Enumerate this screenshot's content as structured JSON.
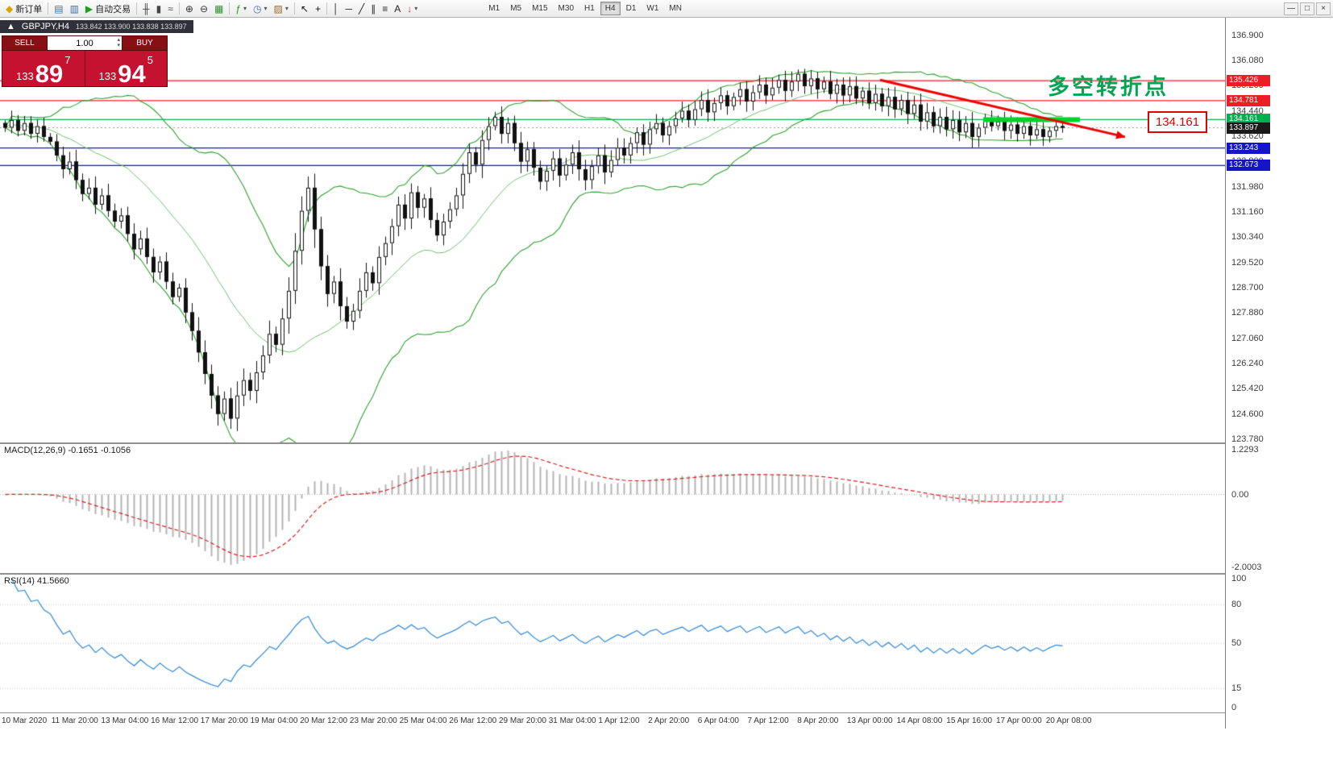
{
  "window": {
    "controls": [
      {
        "name": "minimize",
        "glyph": "—"
      },
      {
        "name": "restore",
        "glyph": "□"
      },
      {
        "name": "close",
        "glyph": "×"
      }
    ]
  },
  "toolbar": {
    "buttons": [
      {
        "name": "new-order",
        "glyph": "◆",
        "label": "新订单",
        "icon_color": "#dba400"
      },
      {
        "type": "sep"
      },
      {
        "name": "chart-window",
        "glyph": "▤",
        "icon_color": "#3a6ea5"
      },
      {
        "name": "profiles",
        "glyph": "▥",
        "icon_color": "#3a6ea5"
      },
      {
        "name": "autotrading",
        "glyph": "▶",
        "label": "自动交易",
        "icon_color": "#18a018"
      },
      {
        "type": "sep"
      },
      {
        "name": "bar-chart-mode",
        "glyph": "╫",
        "icon_color": "#444444"
      },
      {
        "name": "candlestick-mode",
        "glyph": "▮",
        "icon_color": "#444444"
      },
      {
        "name": "line-chart-mode",
        "glyph": "≈",
        "icon_color": "#444444"
      },
      {
        "type": "sep"
      },
      {
        "name": "zoom-in",
        "glyph": "⊕",
        "icon_color": "#333333"
      },
      {
        "name": "zoom-out",
        "glyph": "⊖",
        "icon_color": "#333333"
      },
      {
        "name": "tile-windows",
        "glyph": "▦",
        "icon_color": "#2f8f2f"
      },
      {
        "type": "sep"
      },
      {
        "name": "indicators",
        "glyph": "ƒ",
        "icon_color": "#18a018",
        "dropdown": true
      },
      {
        "name": "periods",
        "glyph": "◷",
        "icon_color": "#3a6ea5",
        "dropdown": true
      },
      {
        "name": "templates",
        "glyph": "▨",
        "icon_color": "#9a6a2a",
        "dropdown": true
      },
      {
        "type": "sep"
      },
      {
        "name": "cursor",
        "glyph": "↖",
        "icon_color": "#111111"
      },
      {
        "name": "crosshair",
        "glyph": "+",
        "icon_color": "#111111"
      },
      {
        "type": "sep"
      },
      {
        "name": "vertical-line",
        "glyph": "│",
        "icon_color": "#222222"
      },
      {
        "name": "horizontal-line",
        "glyph": "─",
        "icon_color": "#222222"
      },
      {
        "name": "trendline",
        "glyph": "╱",
        "icon_color": "#222222"
      },
      {
        "name": "equidistant-channel",
        "glyph": "∥",
        "icon_color": "#222222"
      },
      {
        "name": "fibonacci",
        "glyph": "≡",
        "icon_color": "#222222"
      },
      {
        "name": "text-label",
        "glyph": "A",
        "icon_color": "#222222"
      },
      {
        "name": "arrows-tool",
        "glyph": "↓",
        "icon_color": "#c03030",
        "dropdown": true
      }
    ],
    "timeframes": {
      "items": [
        "M1",
        "M5",
        "M15",
        "M30",
        "H1",
        "H4",
        "D1",
        "W1",
        "MN"
      ],
      "active": "H4"
    }
  },
  "symbol_bar": {
    "collapse_glyph": "▲",
    "title": "GBPJPY,H4",
    "ohlc": "133.842 133.900 133.838 133.897"
  },
  "trade_panel": {
    "sell_label": "SELL",
    "buy_label": "BUY",
    "lot": "1.00",
    "sell_big": "133",
    "sell_pips": "89",
    "sell_sup": "7",
    "buy_big": "133",
    "buy_pips": "94",
    "buy_sup": "5"
  },
  "annotations": {
    "turning_point_text": "多空转折点",
    "price_box": "134.161",
    "trend_arrow": {
      "from_bar": 136,
      "from_price": 135.45,
      "to_bar": 174,
      "to_price": 133.6,
      "color": "#f00000"
    },
    "support_highlight": {
      "from_bar": 152,
      "to_bar": 167,
      "price": 134.161,
      "color": "#00d22a"
    }
  },
  "hlines": [
    {
      "price": 135.426,
      "color": "#ee1c25"
    },
    {
      "price": 134.781,
      "color": "#ee1c25"
    },
    {
      "price": 134.161,
      "color": "#00b050"
    },
    {
      "price": 133.243,
      "color": "#1414c8"
    },
    {
      "price": 132.673,
      "color": "#1414c8"
    }
  ],
  "price_axis": {
    "ticks": [
      "136.900",
      "136.080",
      "135.260",
      "134.440",
      "133.620",
      "132.800",
      "131.980",
      "131.160",
      "130.340",
      "129.520",
      "128.700",
      "127.880",
      "127.060",
      "126.240",
      "125.420",
      "124.600",
      "123.780"
    ],
    "tags": [
      {
        "label": "135.426",
        "bg": "#ee1c25",
        "fg": "#ffffff"
      },
      {
        "label": "134.781",
        "bg": "#ee1c25",
        "fg": "#ffffff"
      },
      {
        "label": "134.161",
        "bg": "#00b050",
        "fg": "#ffffff"
      },
      {
        "label": "133.897",
        "bg": "#1a1a1a",
        "fg": "#ffffff"
      },
      {
        "label": "133.243",
        "bg": "#1414c8",
        "fg": "#ffffff"
      },
      {
        "label": "132.673",
        "bg": "#1414c8",
        "fg": "#ffffff"
      }
    ]
  },
  "macd_panel": {
    "label": "MACD(12,26,9) -0.1651 -0.1056",
    "axis_labels": [
      "1.2293",
      "0.00",
      "-2.0003"
    ],
    "axis_values": [
      1.2293,
      0,
      -2.0003
    ],
    "range": [
      -2.0003,
      1.2293
    ]
  },
  "rsi_panel": {
    "label": "RSI(14) 41.5660",
    "axis_labels": [
      "100",
      "80",
      "50",
      "15",
      "0"
    ],
    "axis_values": [
      100,
      80,
      50,
      15,
      0
    ],
    "levels": [
      80,
      50,
      15
    ],
    "range": [
      0,
      100
    ]
  },
  "chart_data": {
    "type": "candlestick",
    "symbol": "GBPJPY",
    "timeframe": "H4",
    "last_price": 133.897,
    "price_range": [
      123.7,
      137.42
    ],
    "grid": false,
    "closes": [
      133.9,
      134.15,
      133.8,
      134.05,
      133.7,
      133.95,
      133.6,
      133.45,
      133.0,
      132.55,
      132.8,
      132.2,
      131.75,
      131.95,
      131.4,
      131.7,
      131.2,
      130.85,
      131.05,
      130.45,
      129.95,
      130.3,
      129.7,
      129.2,
      129.55,
      128.9,
      128.4,
      128.7,
      127.9,
      127.3,
      126.6,
      125.9,
      125.2,
      124.6,
      125.1,
      124.45,
      125.2,
      125.7,
      125.35,
      125.95,
      126.5,
      127.2,
      126.85,
      127.7,
      128.6,
      129.9,
      131.2,
      131.95,
      130.6,
      129.4,
      128.5,
      128.9,
      128.1,
      127.6,
      127.95,
      128.6,
      129.2,
      128.85,
      129.7,
      130.15,
      130.7,
      131.4,
      130.95,
      131.8,
      131.3,
      131.6,
      130.9,
      130.4,
      130.85,
      131.25,
      131.7,
      132.4,
      133.1,
      132.7,
      133.5,
      133.95,
      134.25,
      133.7,
      134.05,
      133.4,
      132.8,
      133.2,
      132.6,
      132.15,
      132.5,
      132.9,
      132.35,
      132.7,
      133.1,
      132.55,
      132.2,
      132.65,
      133.0,
      132.45,
      132.85,
      133.25,
      133.0,
      133.4,
      133.75,
      133.35,
      133.85,
      134.05,
      133.65,
      133.95,
      134.2,
      134.45,
      134.15,
      134.5,
      134.8,
      134.4,
      134.7,
      134.95,
      134.6,
      134.9,
      135.15,
      134.75,
      135.05,
      135.3,
      134.95,
      135.2,
      135.45,
      135.1,
      135.4,
      135.65,
      135.25,
      135.5,
      135.15,
      135.4,
      135.0,
      135.3,
      134.95,
      135.25,
      134.85,
      135.1,
      134.7,
      135.0,
      134.6,
      134.9,
      134.5,
      134.8,
      134.35,
      134.65,
      134.1,
      134.4,
      133.95,
      134.25,
      133.85,
      134.15,
      133.75,
      134.05,
      133.6,
      133.9,
      134.2,
      133.95,
      134.1,
      133.8,
      134.0,
      133.7,
      133.95,
      133.65,
      133.85,
      133.6,
      133.8,
      133.95,
      133.9
    ],
    "indicators": {
      "bollinger": {
        "period": 20,
        "deviation": 2,
        "color": "#2ca02c"
      },
      "macd": {
        "fast": 12,
        "slow": 26,
        "signal": 9,
        "main": -0.1651,
        "signal_value": -0.1056
      },
      "rsi": {
        "period": 14,
        "value": 41.566
      }
    },
    "x_axis_labels": [
      "10 Mar 2020",
      "11 Mar 20:00",
      "13 Mar 04:00",
      "16 Mar 12:00",
      "17 Mar 20:00",
      "19 Mar 04:00",
      "20 Mar 12:00",
      "23 Mar 20:00",
      "25 Mar 04:00",
      "26 Mar 12:00",
      "29 Mar 20:00",
      "31 Mar 04:00",
      "1 Apr 12:00",
      "2 Apr 20:00",
      "6 Apr 04:00",
      "7 Apr 12:00",
      "8 Apr 20:00",
      "13 Apr 00:00",
      "14 Apr 08:00",
      "15 Apr 16:00",
      "17 Apr 00:00",
      "20 Apr 08:00"
    ]
  }
}
